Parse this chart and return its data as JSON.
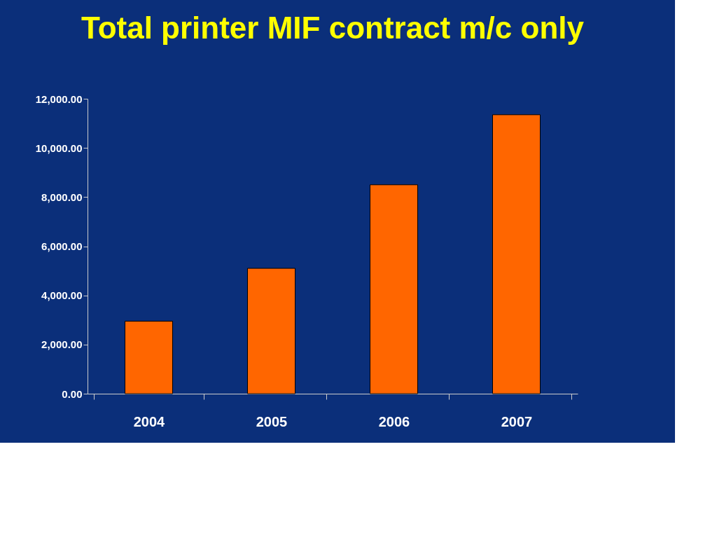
{
  "chart_data": {
    "type": "bar",
    "title": "Total printer MIF contract m/c only",
    "categories": [
      "2004",
      "2005",
      "2006",
      "2007"
    ],
    "values": [
      2950,
      5100,
      8500,
      11350
    ],
    "color": "#ff6600",
    "ylim": [
      0,
      12000
    ],
    "yticks": [
      {
        "value": 0,
        "label": "0.00"
      },
      {
        "value": 2000,
        "label": "2,000.00"
      },
      {
        "value": 4000,
        "label": "4,000.00"
      },
      {
        "value": 6000,
        "label": "6,000.00"
      },
      {
        "value": 8000,
        "label": "8,000.00"
      },
      {
        "value": 10000,
        "label": "10,000.00"
      },
      {
        "value": 12000,
        "label": "12,000.00"
      }
    ],
    "grid": false
  }
}
